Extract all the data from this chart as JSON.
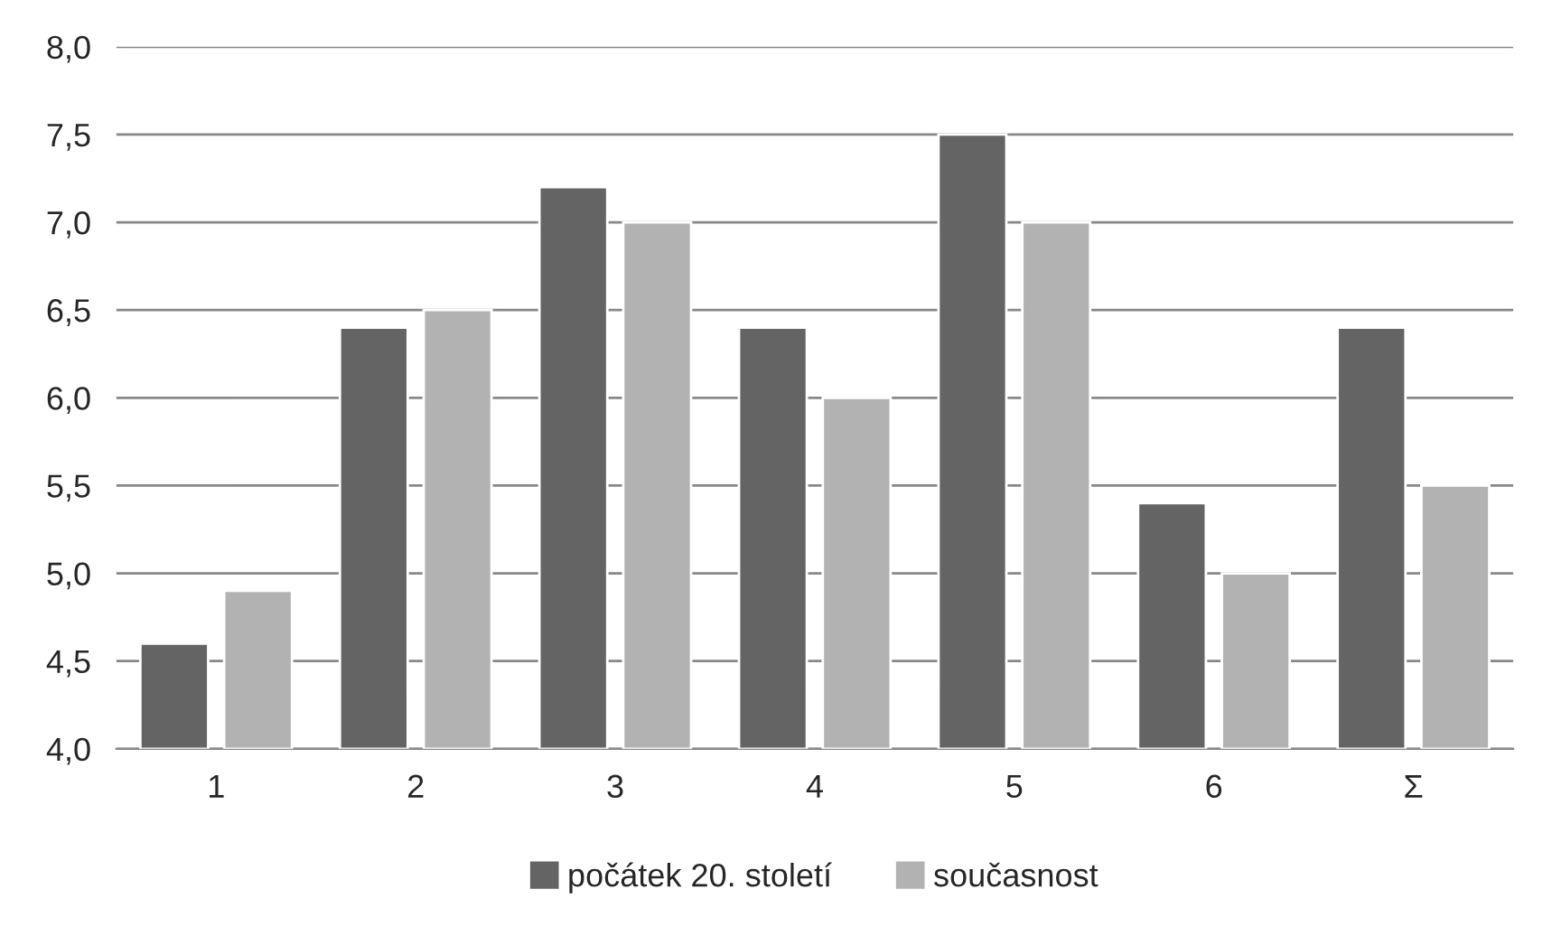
{
  "chart_data": {
    "type": "bar",
    "categories": [
      "1",
      "2",
      "3",
      "4",
      "5",
      "6",
      "Σ"
    ],
    "series": [
      {
        "name": "počátek 20. století",
        "color": "#646464",
        "values": [
          4.6,
          6.4,
          7.2,
          6.4,
          7.5,
          5.4,
          6.4
        ]
      },
      {
        "name": "současnost",
        "color": "#b2b2b2",
        "values": [
          4.9,
          6.5,
          7.0,
          6.0,
          7.0,
          5.0,
          5.5
        ]
      }
    ],
    "ylim": [
      4.0,
      8.0
    ],
    "yticks": [
      {
        "value": 4.0,
        "label": "4,0"
      },
      {
        "value": 4.5,
        "label": "4,5"
      },
      {
        "value": 5.0,
        "label": "5,0"
      },
      {
        "value": 5.5,
        "label": "5,5"
      },
      {
        "value": 6.0,
        "label": "6,0"
      },
      {
        "value": 6.5,
        "label": "6,5"
      },
      {
        "value": 7.0,
        "label": "7,0"
      },
      {
        "value": 7.5,
        "label": "7,5"
      },
      {
        "value": 8.0,
        "label": "8,0"
      }
    ],
    "grid": "y",
    "legend": "bottom"
  }
}
